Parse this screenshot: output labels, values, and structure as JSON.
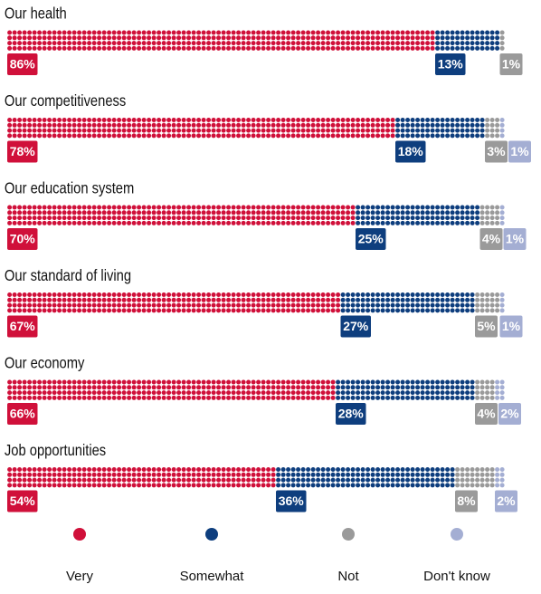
{
  "chart_data": {
    "type": "dotbar",
    "categories": [
      "Our health",
      "Our competitiveness",
      "Our education system",
      "Our standard of living",
      "Our economy",
      "Job opportunities"
    ],
    "series": [
      {
        "name": "Very",
        "color": "#d0103a",
        "values": [
          86,
          78,
          70,
          67,
          66,
          54
        ],
        "value_labels": [
          "86%",
          "78%",
          "70%",
          "67%",
          "66%",
          "54%"
        ]
      },
      {
        "name": "Somewhat",
        "color": "#0e3e7e",
        "values": [
          13,
          18,
          25,
          27,
          28,
          36
        ],
        "value_labels": [
          "13%",
          "18%",
          "25%",
          "27%",
          "28%",
          "36%"
        ]
      },
      {
        "name": "Not",
        "color": "#9a9a9a",
        "values": [
          1,
          3,
          4,
          5,
          4,
          8
        ],
        "value_labels": [
          "1%",
          "3%",
          "4%",
          "5%",
          "4%",
          "8%"
        ]
      },
      {
        "name": "Don't know",
        "color": "#a4aed3",
        "values": [
          null,
          1,
          1,
          1,
          2,
          2
        ],
        "value_labels": [
          null,
          "1%",
          "1%",
          "1%",
          "2%",
          "2%"
        ]
      }
    ]
  }
}
